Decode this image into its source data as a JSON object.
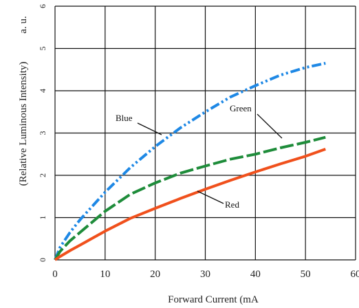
{
  "chart_data": {
    "type": "line",
    "title": "",
    "xlabel": "Forward Current (mA",
    "ylabel_left": "(Relative Luminous Intensity)",
    "ylabel_unit": "a. u.",
    "xlim": [
      0,
      60
    ],
    "ylim": [
      0,
      6
    ],
    "xticks": [
      "0",
      "10",
      "20",
      "30",
      "40",
      "50",
      "60"
    ],
    "yticks": [
      "0",
      "1",
      "2",
      "3",
      "4",
      "5",
      "6"
    ],
    "grid": true,
    "legend": "callouts",
    "series": [
      {
        "name": "Blue",
        "color": "#1e88e5",
        "dash": "dash-dot-dot",
        "x": [
          0,
          1,
          3,
          5,
          10,
          15,
          20,
          25,
          30,
          35,
          40,
          45,
          50,
          54
        ],
        "y": [
          0,
          0.3,
          0.65,
          0.95,
          1.6,
          2.18,
          2.68,
          3.12,
          3.5,
          3.85,
          4.12,
          4.37,
          4.55,
          4.65
        ]
      },
      {
        "name": "Green",
        "color": "#1e8c3a",
        "dash": "long-dash",
        "x": [
          0,
          1,
          3,
          5,
          10,
          15,
          20,
          25,
          30,
          35,
          40,
          45,
          50,
          54
        ],
        "y": [
          0,
          0.2,
          0.45,
          0.65,
          1.15,
          1.55,
          1.82,
          2.05,
          2.22,
          2.38,
          2.5,
          2.65,
          2.78,
          2.9
        ]
      },
      {
        "name": "Red",
        "color": "#f0501c",
        "dash": "solid",
        "x": [
          0,
          1,
          3,
          5,
          10,
          15,
          20,
          25,
          30,
          35,
          40,
          45,
          50,
          54
        ],
        "y": [
          0,
          0.08,
          0.22,
          0.35,
          0.68,
          0.98,
          1.22,
          1.45,
          1.67,
          1.88,
          2.08,
          2.27,
          2.45,
          2.62
        ]
      }
    ]
  }
}
